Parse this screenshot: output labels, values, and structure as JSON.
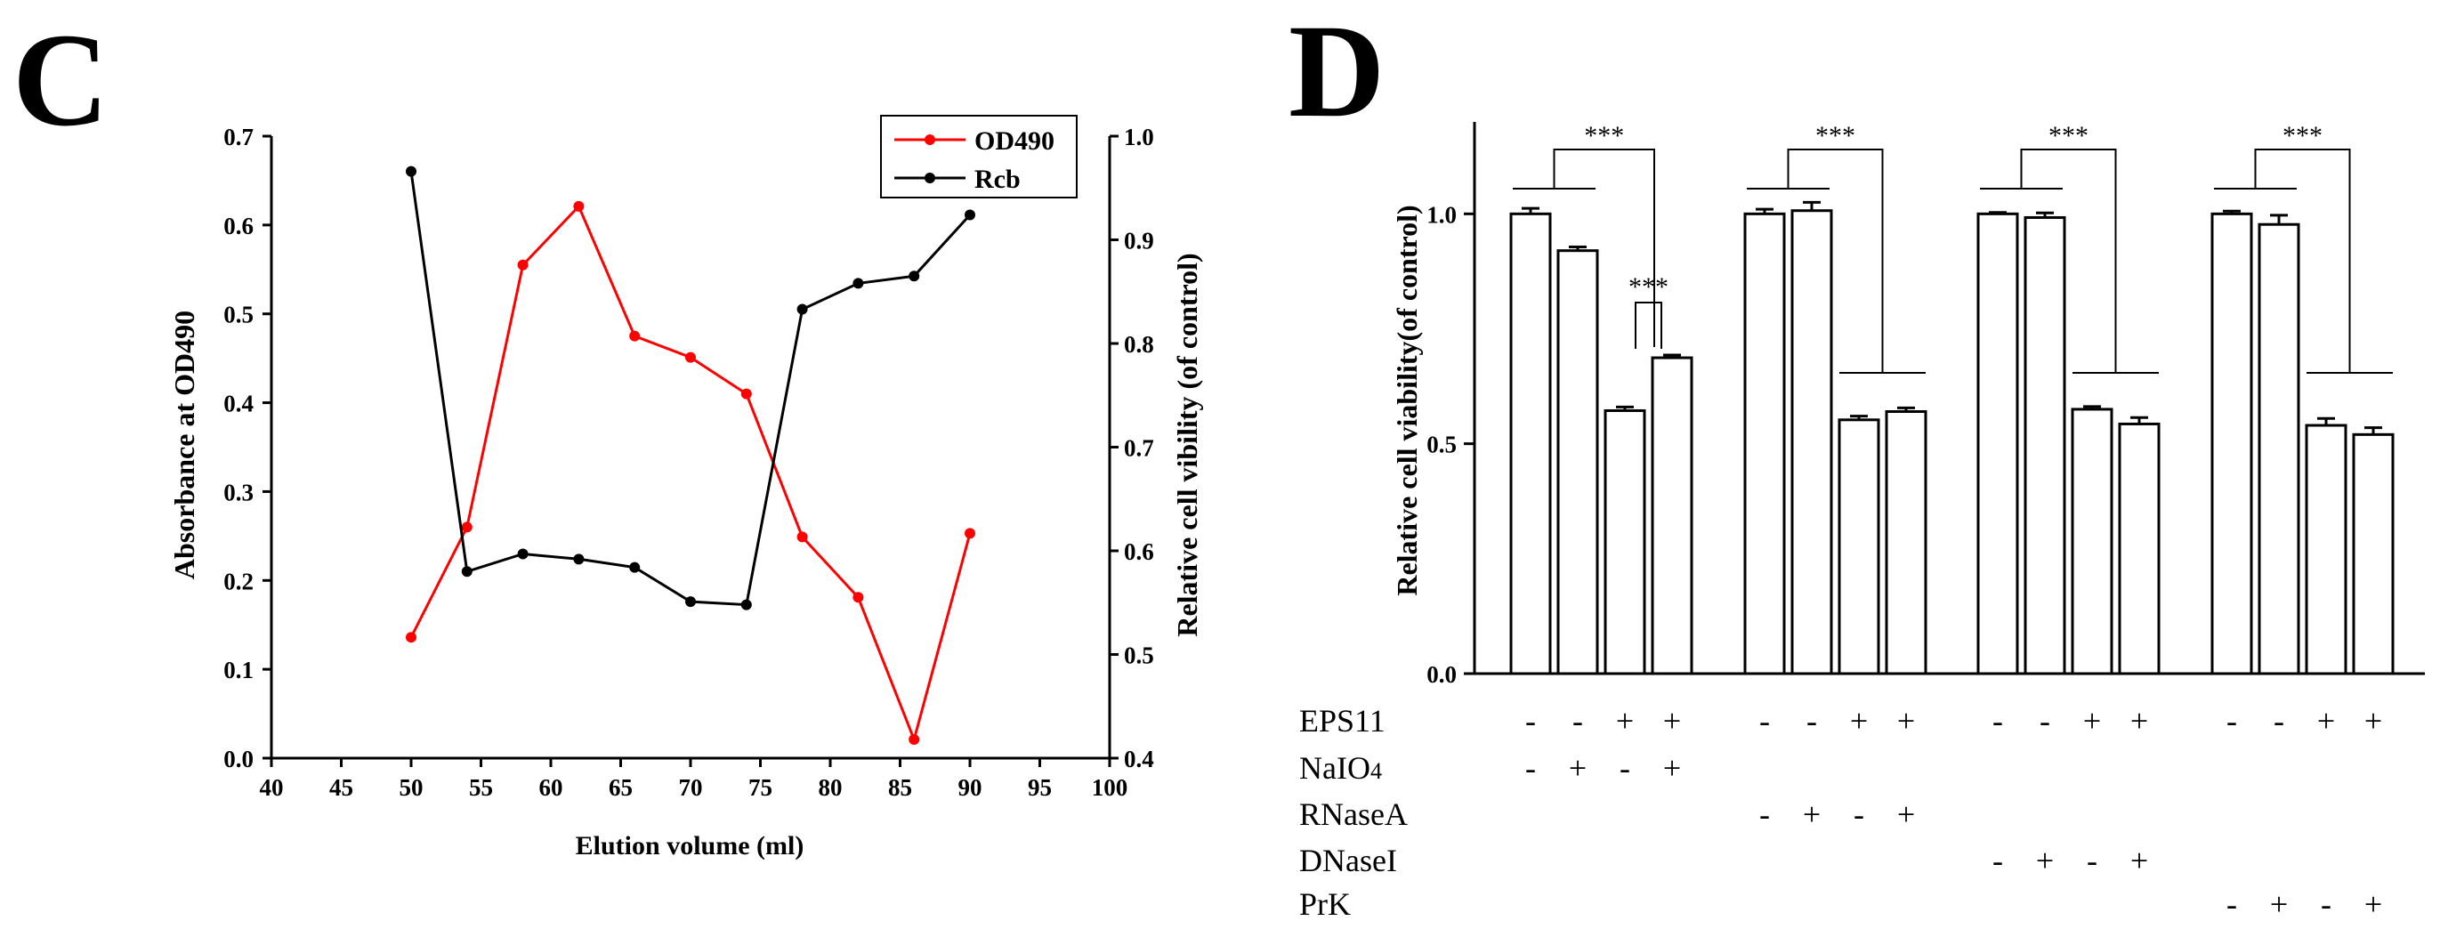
{
  "panels": {
    "left": "C",
    "right": "D"
  },
  "chart_data": [
    {
      "type": "line",
      "title": "",
      "xlabel": "Elution volume (ml)",
      "ylabel": "Absorbance at OD490",
      "y2label": "Relative cell vibility (of control)",
      "xlim": [
        40,
        100
      ],
      "ylim": [
        0.0,
        0.7
      ],
      "y2lim": [
        0.4,
        1.0
      ],
      "xticks": [
        "40",
        "45",
        "50",
        "55",
        "60",
        "65",
        "70",
        "75",
        "80",
        "85",
        "90",
        "95",
        "100"
      ],
      "yticks": [
        "0.0",
        "0.1",
        "0.2",
        "0.3",
        "0.4",
        "0.5",
        "0.6",
        "0.7"
      ],
      "y2ticks": [
        "0.4",
        "0.5",
        "0.6",
        "0.7",
        "0.8",
        "0.9",
        "1.0"
      ],
      "legend_position": "top-right",
      "series": [
        {
          "name": "OD490",
          "axis": "left",
          "color": "#ff0000",
          "x": [
            50,
            54,
            58,
            62,
            66,
            70,
            74,
            78,
            82,
            86,
            90
          ],
          "y": [
            0.136,
            0.26,
            0.555,
            0.621,
            0.475,
            0.451,
            0.41,
            0.249,
            0.181,
            0.021,
            0.253
          ]
        },
        {
          "name": "Rcb",
          "axis": "right",
          "color": "#000000",
          "x": [
            50,
            54,
            58,
            62,
            66,
            70,
            74,
            78,
            82,
            86,
            90
          ],
          "y": [
            0.966,
            0.58,
            0.597,
            0.592,
            0.584,
            0.551,
            0.548,
            0.833,
            0.858,
            0.865,
            0.924
          ]
        }
      ]
    },
    {
      "type": "bar",
      "title": "",
      "xlabel": "",
      "ylabel": "Relative cell viability(of control)",
      "ylim": [
        0.0,
        1.2
      ],
      "yticks": [
        "0.0",
        "0.5",
        "1.0"
      ],
      "groups": [
        {
          "values": [
            1.0,
            0.92,
            0.572,
            0.687
          ],
          "errors": [
            0.012,
            0.008,
            0.008,
            0.006
          ]
        },
        {
          "values": [
            1.0,
            1.007,
            0.552,
            0.57
          ],
          "errors": [
            0.01,
            0.018,
            0.008,
            0.008
          ]
        },
        {
          "values": [
            1.0,
            0.992,
            0.575,
            0.543
          ],
          "errors": [
            0.003,
            0.01,
            0.006,
            0.014
          ]
        },
        {
          "values": [
            1.0,
            0.977,
            0.54,
            0.52
          ],
          "errors": [
            0.006,
            0.02,
            0.015,
            0.015
          ]
        }
      ],
      "significance": [
        {
          "group": 0,
          "label": "***",
          "kind": "main"
        },
        {
          "group": 0,
          "label": "***",
          "kind": "inner"
        },
        {
          "group": 1,
          "label": "***",
          "kind": "main"
        },
        {
          "group": 2,
          "label": "***",
          "kind": "main"
        },
        {
          "group": 3,
          "label": "***",
          "kind": "main"
        }
      ],
      "treatments": [
        {
          "label": "EPS11",
          "sub": "",
          "signs": [
            [
              "-",
              "-",
              "+",
              "+"
            ],
            [
              "-",
              "-",
              "+",
              "+"
            ],
            [
              "-",
              "-",
              "+",
              "+"
            ],
            [
              "-",
              "-",
              "+",
              "+"
            ]
          ]
        },
        {
          "label": "NaIO",
          "sub": "4",
          "signs": [
            [
              "-",
              "+",
              "-",
              "+"
            ],
            null,
            null,
            null
          ]
        },
        {
          "label": "RNaseA",
          "sub": "",
          "signs": [
            null,
            [
              "-",
              "+",
              "-",
              "+"
            ],
            null,
            null
          ]
        },
        {
          "label": "DNaseI",
          "sub": "",
          "signs": [
            null,
            null,
            [
              "-",
              "+",
              "-",
              "+"
            ],
            null
          ]
        },
        {
          "label": "PrK",
          "sub": "",
          "signs": [
            null,
            null,
            null,
            [
              "-",
              "+",
              "-",
              "+"
            ]
          ]
        }
      ]
    }
  ]
}
